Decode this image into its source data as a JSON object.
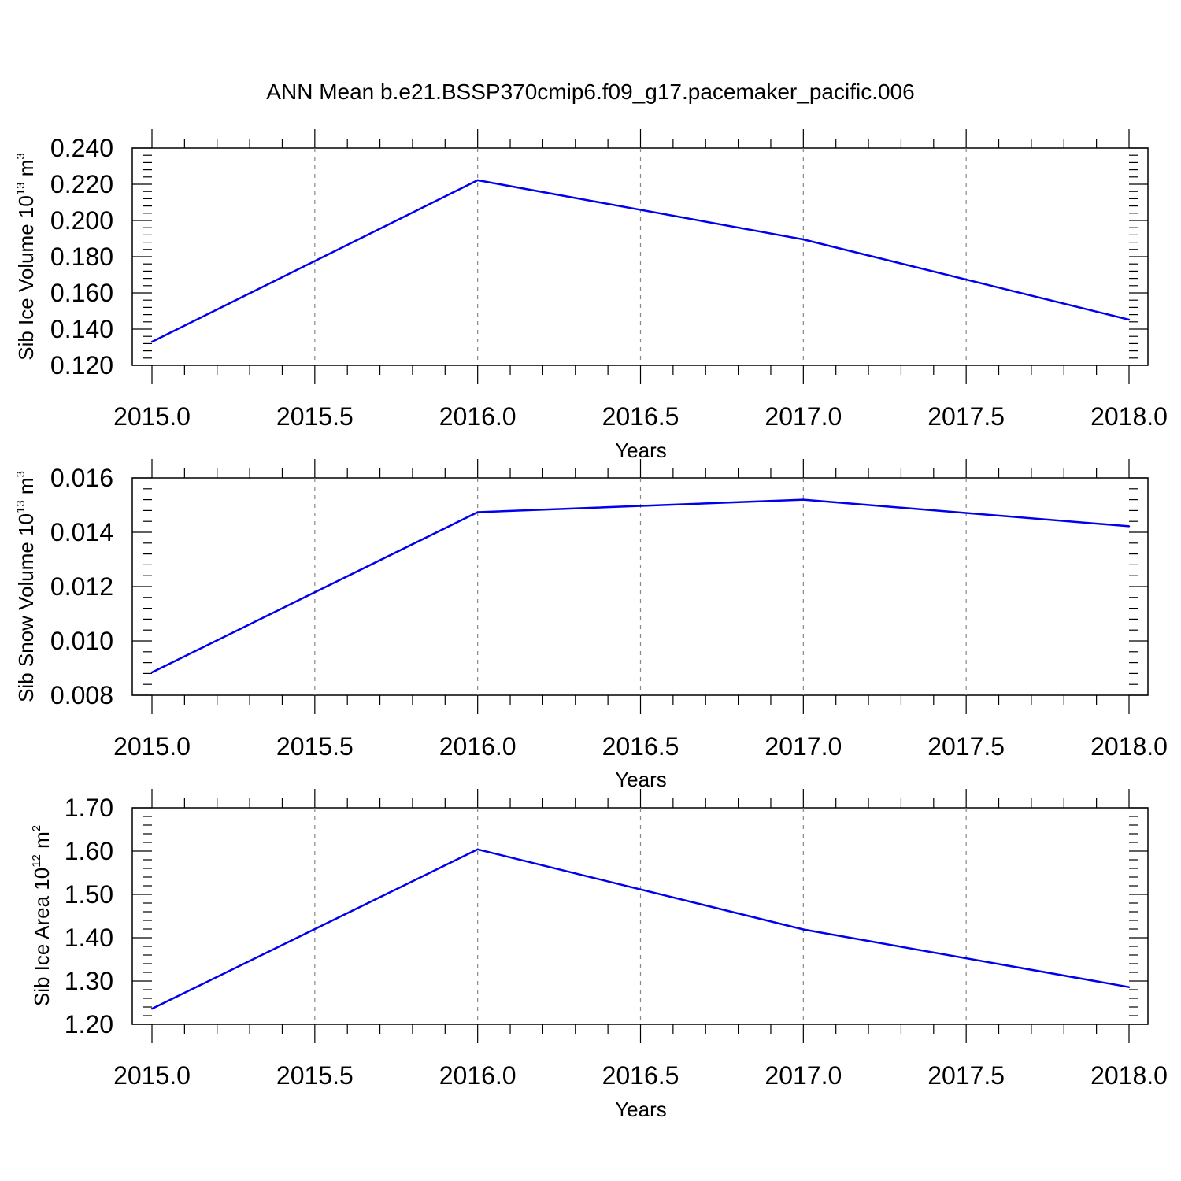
{
  "title": "ANN Mean b.e21.BSSP370cmip6.f09_g17.pacemaker_pacific.006",
  "colors": {
    "series": "#0000ee",
    "grid": "#888888",
    "axis": "#000000"
  },
  "chart_data": [
    {
      "type": "line",
      "xlabel": "Years",
      "ylabel": {
        "main": "Sib Ice Volume 10",
        "sup1": "13",
        "unit": " m",
        "sup2": "3"
      },
      "xlim": [
        2015.0,
        2018.0
      ],
      "ylim": [
        0.12,
        0.24
      ],
      "xticks": [
        "2015.0",
        "2015.5",
        "2016.0",
        "2016.5",
        "2017.0",
        "2017.5",
        "2018.0"
      ],
      "yticks": [
        "0.120",
        "0.140",
        "0.160",
        "0.180",
        "0.200",
        "0.220",
        "0.240"
      ],
      "grid": "x-dashed",
      "series": [
        {
          "x": [
            2015,
            2016,
            2017,
            2018
          ],
          "values": [
            0.133,
            0.2222,
            0.1895,
            0.1452
          ]
        }
      ]
    },
    {
      "type": "line",
      "xlabel": "Years",
      "ylabel": {
        "main": "Sib Snow Volume 10",
        "sup1": "13",
        "unit": " m",
        "sup2": "3"
      },
      "xlim": [
        2015.0,
        2018.0
      ],
      "ylim": [
        0.008,
        0.016
      ],
      "xticks": [
        "2015.0",
        "2015.5",
        "2016.0",
        "2016.5",
        "2017.0",
        "2017.5",
        "2018.0"
      ],
      "yticks": [
        "0.008",
        "0.010",
        "0.012",
        "0.014",
        "0.016"
      ],
      "grid": "x-dashed",
      "series": [
        {
          "x": [
            2015,
            2016,
            2017,
            2018
          ],
          "values": [
            0.00884,
            0.01474,
            0.0152,
            0.01422
          ]
        }
      ]
    },
    {
      "type": "line",
      "xlabel": "Years",
      "ylabel": {
        "main": "Sib Ice Area 10",
        "sup1": "12",
        "unit": " m",
        "sup2": "2"
      },
      "xlim": [
        2015.0,
        2018.0
      ],
      "ylim": [
        1.2,
        1.7
      ],
      "xticks": [
        "2015.0",
        "2015.5",
        "2016.0",
        "2016.5",
        "2017.0",
        "2017.5",
        "2018.0"
      ],
      "yticks": [
        "1.20",
        "1.30",
        "1.40",
        "1.50",
        "1.60",
        "1.70"
      ],
      "grid": "x-dashed",
      "series": [
        {
          "x": [
            2015,
            2016,
            2017,
            2018
          ],
          "values": [
            1.236,
            1.604,
            1.419,
            1.286
          ]
        }
      ]
    }
  ]
}
